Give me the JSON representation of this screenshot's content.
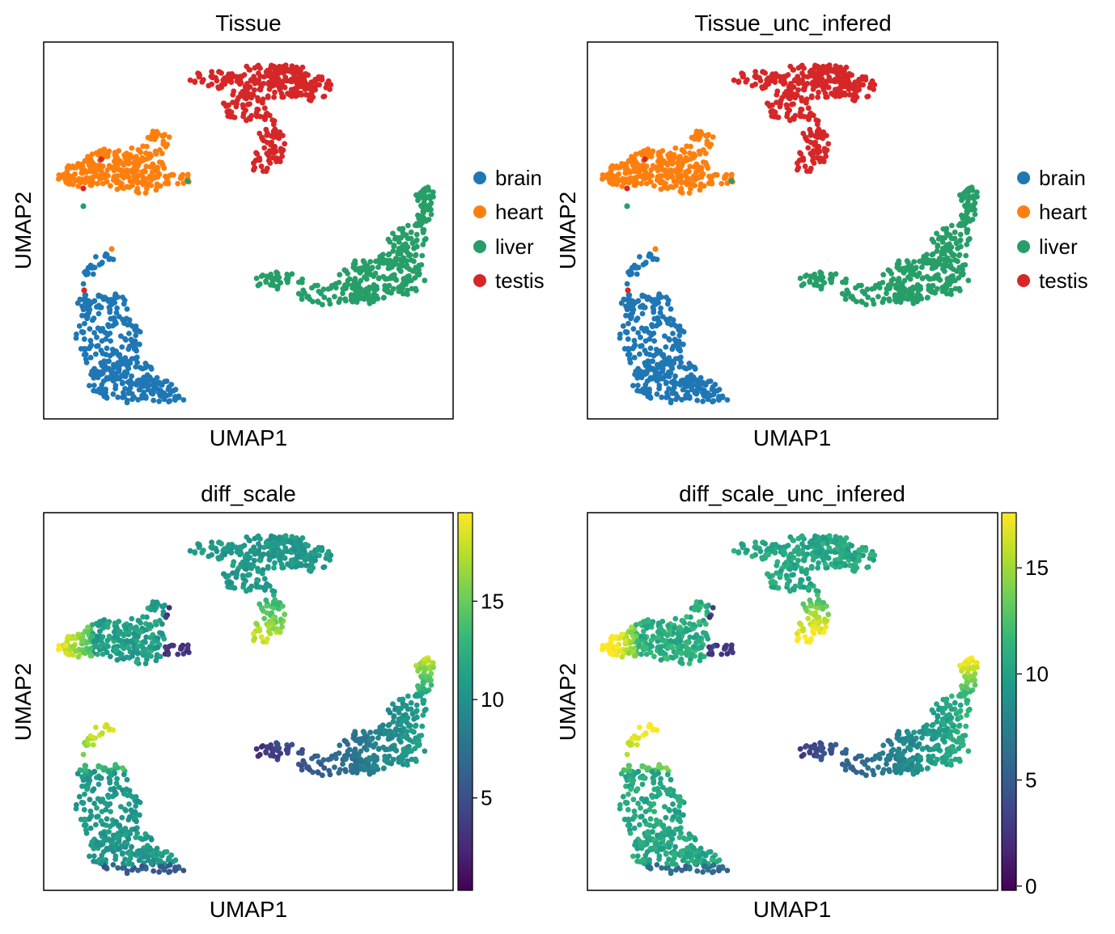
{
  "figure": {
    "colormap": "viridis",
    "viridis_stops": [
      "#440154",
      "#482878",
      "#3e4989",
      "#31688e",
      "#26828e",
      "#1f9e89",
      "#35b779",
      "#6ece58",
      "#b5de2b",
      "#fde725"
    ]
  },
  "chart_data": [
    {
      "type": "scatter",
      "title": "Tissue",
      "xlabel": "UMAP1",
      "ylabel": "UMAP2",
      "ticks": "none",
      "color_by": "categorical",
      "legend": {
        "placement": "right",
        "entries": [
          {
            "label": "brain",
            "color": "#1f77b4"
          },
          {
            "label": "heart",
            "color": "#ff7f0e"
          },
          {
            "label": "liver",
            "color": "#279e68"
          },
          {
            "label": "testis",
            "color": "#d62728"
          }
        ]
      }
    },
    {
      "type": "scatter",
      "title": "Tissue_unc_infered",
      "xlabel": "UMAP1",
      "ylabel": "UMAP2",
      "ticks": "none",
      "color_by": "categorical",
      "legend": {
        "placement": "right",
        "entries": [
          {
            "label": "brain",
            "color": "#1f77b4"
          },
          {
            "label": "heart",
            "color": "#ff7f0e"
          },
          {
            "label": "liver",
            "color": "#279e68"
          },
          {
            "label": "testis",
            "color": "#d62728"
          }
        ]
      }
    },
    {
      "type": "scatter",
      "title": "diff_scale",
      "xlabel": "UMAP1",
      "ylabel": "UMAP2",
      "ticks": "none",
      "color_by": "continuous",
      "colorbar": {
        "range": [
          0.3,
          19.5
        ],
        "ticks": [
          5,
          10,
          15
        ]
      }
    },
    {
      "type": "scatter",
      "title": "diff_scale_unc_infered",
      "xlabel": "UMAP1",
      "ylabel": "UMAP2",
      "ticks": "none",
      "color_by": "continuous",
      "colorbar": {
        "range": [
          -0.2,
          17.6
        ],
        "ticks": [
          0,
          5,
          10,
          15
        ]
      }
    }
  ]
}
